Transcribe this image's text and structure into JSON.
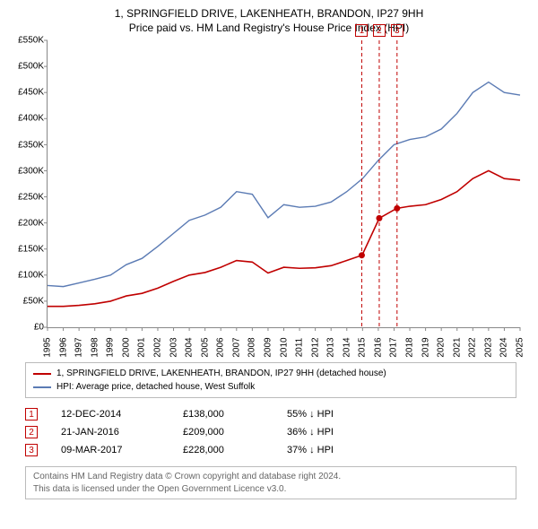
{
  "header": {
    "title": "1, SPRINGFIELD DRIVE, LAKENHEATH, BRANDON, IP27 9HH",
    "subtitle": "Price paid vs. HM Land Registry's House Price Index (HPI)"
  },
  "chart": {
    "type": "line",
    "background_color": "#ffffff",
    "axis_color": "#888888",
    "tick_fontsize": 10,
    "x": {
      "min": 1995,
      "max": 2025,
      "tick_step": 1
    },
    "y": {
      "min": 0,
      "max": 550000,
      "tick_step": 50000,
      "prefix": "£",
      "suffix_thousands": "K"
    },
    "series": [
      {
        "id": "hpi",
        "label": "HPI: Average price, detached house, West Suffolk",
        "color": "#5b7bb4",
        "line_width": 1.4,
        "data": [
          [
            1995,
            80000
          ],
          [
            1996,
            78000
          ],
          [
            1997,
            85000
          ],
          [
            1998,
            92000
          ],
          [
            1999,
            100000
          ],
          [
            2000,
            120000
          ],
          [
            2001,
            132000
          ],
          [
            2002,
            155000
          ],
          [
            2003,
            180000
          ],
          [
            2004,
            205000
          ],
          [
            2005,
            215000
          ],
          [
            2006,
            230000
          ],
          [
            2007,
            260000
          ],
          [
            2008,
            255000
          ],
          [
            2009,
            210000
          ],
          [
            2010,
            235000
          ],
          [
            2011,
            230000
          ],
          [
            2012,
            232000
          ],
          [
            2013,
            240000
          ],
          [
            2014,
            260000
          ],
          [
            2015,
            285000
          ],
          [
            2016,
            320000
          ],
          [
            2017,
            350000
          ],
          [
            2018,
            360000
          ],
          [
            2019,
            365000
          ],
          [
            2020,
            380000
          ],
          [
            2021,
            410000
          ],
          [
            2022,
            450000
          ],
          [
            2023,
            470000
          ],
          [
            2024,
            450000
          ],
          [
            2025,
            445000
          ]
        ]
      },
      {
        "id": "property",
        "label": "1, SPRINGFIELD DRIVE, LAKENHEATH, BRANDON, IP27 9HH (detached house)",
        "color": "#c00000",
        "line_width": 1.6,
        "data": [
          [
            1995,
            40000
          ],
          [
            1996,
            40000
          ],
          [
            1997,
            42000
          ],
          [
            1998,
            45000
          ],
          [
            1999,
            50000
          ],
          [
            2000,
            60000
          ],
          [
            2001,
            65000
          ],
          [
            2002,
            75000
          ],
          [
            2003,
            88000
          ],
          [
            2004,
            100000
          ],
          [
            2005,
            105000
          ],
          [
            2006,
            115000
          ],
          [
            2007,
            128000
          ],
          [
            2008,
            125000
          ],
          [
            2009,
            104000
          ],
          [
            2010,
            115000
          ],
          [
            2011,
            113000
          ],
          [
            2012,
            114000
          ],
          [
            2013,
            118000
          ],
          [
            2014,
            128000
          ],
          [
            2014.95,
            138000
          ],
          [
            2015,
            140000
          ],
          [
            2016,
            205000
          ],
          [
            2016.06,
            209000
          ],
          [
            2017,
            225000
          ],
          [
            2017.19,
            228000
          ],
          [
            2018,
            232000
          ],
          [
            2019,
            235000
          ],
          [
            2020,
            245000
          ],
          [
            2021,
            260000
          ],
          [
            2022,
            285000
          ],
          [
            2023,
            300000
          ],
          [
            2024,
            285000
          ],
          [
            2025,
            282000
          ]
        ]
      }
    ],
    "sale_markers": [
      {
        "n": "1",
        "year": 2014.95,
        "marker_color": "#c00000",
        "line_dash": "4,3"
      },
      {
        "n": "2",
        "year": 2016.06,
        "marker_color": "#c00000",
        "line_dash": "4,3"
      },
      {
        "n": "3",
        "year": 2017.19,
        "marker_color": "#c00000",
        "line_dash": "4,3"
      }
    ],
    "sale_point_dot_color": "#c00000",
    "sale_point_dot_radius": 3.5
  },
  "legend": {
    "items": [
      {
        "color": "#c00000",
        "text": "1, SPRINGFIELD DRIVE, LAKENHEATH, BRANDON, IP27 9HH (detached house)"
      },
      {
        "color": "#5b7bb4",
        "text": "HPI: Average price, detached house, West Suffolk"
      }
    ]
  },
  "sales_table": {
    "rows": [
      {
        "n": "1",
        "date": "12-DEC-2014",
        "price": "£138,000",
        "diff": "55% ↓ HPI"
      },
      {
        "n": "2",
        "date": "21-JAN-2016",
        "price": "£209,000",
        "diff": "36% ↓ HPI"
      },
      {
        "n": "3",
        "date": "09-MAR-2017",
        "price": "£228,000",
        "diff": "37% ↓ HPI"
      }
    ]
  },
  "footer": {
    "line1": "Contains HM Land Registry data © Crown copyright and database right 2024.",
    "line2": "This data is licensed under the Open Government Licence v3.0."
  }
}
